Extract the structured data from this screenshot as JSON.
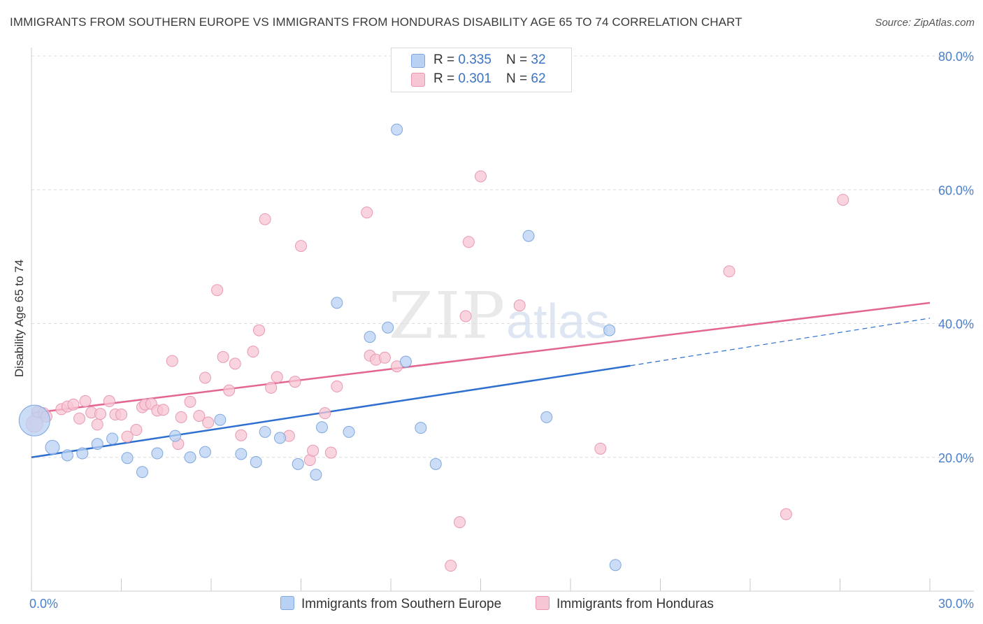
{
  "header": {
    "title": "IMMIGRANTS FROM SOUTHERN EUROPE VS IMMIGRANTS FROM HONDURAS DISABILITY AGE 65 TO 74 CORRELATION CHART",
    "source": "Source: ZipAtlas.com"
  },
  "watermark": {
    "zip": "ZIP",
    "atlas": "atlas"
  },
  "legend_top": {
    "rows": [
      {
        "r_label": "R = ",
        "r_value": "0.335",
        "n_label": "N = ",
        "n_value": "32"
      },
      {
        "r_label": "R = ",
        "r_value": "0.301",
        "n_label": "N = ",
        "n_value": "62"
      }
    ]
  },
  "legend_bottom": {
    "series_a": "Immigrants from Southern Europe",
    "series_b": "Immigrants from Honduras"
  },
  "colors": {
    "blue_fill": "#b9d2f3",
    "blue_stroke": "#7fa8de",
    "blue_line": "#2e6fd0",
    "pink_fill": "#f7c6d4",
    "pink_stroke": "#e899b2",
    "pink_line": "#e36591",
    "tick_label": "#4a7fc9",
    "grid": "#dcdcdc"
  },
  "chart_data": {
    "type": "scatter",
    "title": "IMMIGRANTS FROM SOUTHERN EUROPE VS IMMIGRANTS FROM HONDURAS DISABILITY AGE 65 TO 74 CORRELATION CHART",
    "xlabel": "",
    "ylabel": "Disability Age 65 to 74",
    "xlim": [
      0,
      30
    ],
    "ylim": [
      0,
      80
    ],
    "x_tick_labels": [
      "0.0%",
      "30.0%"
    ],
    "y_ticks": [
      20,
      40,
      60,
      80
    ],
    "y_tick_labels": [
      "20.0%",
      "40.0%",
      "60.0%",
      "80.0%"
    ],
    "grid": true,
    "legend_placement": "top-center",
    "series": [
      {
        "name": "Immigrants from Southern Europe",
        "r": 0.335,
        "n": 32,
        "trend": {
          "x0": 0,
          "y0": 20.0,
          "x1": 20.0,
          "y1": 33.7,
          "dashed_to_x": 30,
          "dashed_to_y": 40.8
        },
        "points": [
          {
            "x": 0.1,
            "y": 25.5,
            "s": 22
          },
          {
            "x": 0.7,
            "y": 21.5,
            "s": 10
          },
          {
            "x": 1.2,
            "y": 20.3,
            "s": 8
          },
          {
            "x": 1.7,
            "y": 20.6,
            "s": 8
          },
          {
            "x": 2.2,
            "y": 22.0,
            "s": 8
          },
          {
            "x": 2.7,
            "y": 22.8,
            "s": 8
          },
          {
            "x": 3.2,
            "y": 19.9,
            "s": 8
          },
          {
            "x": 3.7,
            "y": 17.8,
            "s": 8
          },
          {
            "x": 4.2,
            "y": 20.6,
            "s": 8
          },
          {
            "x": 4.8,
            "y": 23.2,
            "s": 8
          },
          {
            "x": 5.3,
            "y": 20.0,
            "s": 8
          },
          {
            "x": 5.8,
            "y": 20.8,
            "s": 8
          },
          {
            "x": 6.3,
            "y": 25.6,
            "s": 8
          },
          {
            "x": 7.0,
            "y": 20.5,
            "s": 8
          },
          {
            "x": 7.5,
            "y": 19.3,
            "s": 8
          },
          {
            "x": 7.8,
            "y": 23.8,
            "s": 8
          },
          {
            "x": 8.3,
            "y": 22.9,
            "s": 8
          },
          {
            "x": 8.9,
            "y": 19.0,
            "s": 8
          },
          {
            "x": 9.5,
            "y": 17.4,
            "s": 8
          },
          {
            "x": 9.7,
            "y": 24.5,
            "s": 8
          },
          {
            "x": 10.2,
            "y": 43.1,
            "s": 8
          },
          {
            "x": 10.6,
            "y": 23.8,
            "s": 8
          },
          {
            "x": 11.3,
            "y": 38.0,
            "s": 8
          },
          {
            "x": 11.9,
            "y": 39.4,
            "s": 8
          },
          {
            "x": 12.2,
            "y": 69.0,
            "s": 8
          },
          {
            "x": 12.5,
            "y": 34.3,
            "s": 8
          },
          {
            "x": 13.0,
            "y": 24.4,
            "s": 8
          },
          {
            "x": 13.5,
            "y": 19.0,
            "s": 8
          },
          {
            "x": 16.6,
            "y": 53.1,
            "s": 8
          },
          {
            "x": 17.2,
            "y": 26.0,
            "s": 8
          },
          {
            "x": 19.3,
            "y": 39.0,
            "s": 8
          },
          {
            "x": 19.5,
            "y": 3.9,
            "s": 8
          }
        ]
      },
      {
        "name": "Immigrants from Honduras",
        "r": 0.301,
        "n": 62,
        "trend": {
          "x0": 0,
          "y0": 26.6,
          "x1": 30,
          "y1": 43.1
        },
        "points": [
          {
            "x": 0.1,
            "y": 25.0,
            "s": 12
          },
          {
            "x": 0.2,
            "y": 26.8,
            "s": 8
          },
          {
            "x": 0.4,
            "y": 26.6,
            "s": 8
          },
          {
            "x": 0.5,
            "y": 26.1,
            "s": 8
          },
          {
            "x": 1.0,
            "y": 27.2,
            "s": 8
          },
          {
            "x": 1.2,
            "y": 27.6,
            "s": 8
          },
          {
            "x": 1.4,
            "y": 27.9,
            "s": 8
          },
          {
            "x": 1.6,
            "y": 25.8,
            "s": 8
          },
          {
            "x": 1.8,
            "y": 28.4,
            "s": 8
          },
          {
            "x": 2.0,
            "y": 26.7,
            "s": 8
          },
          {
            "x": 2.2,
            "y": 24.9,
            "s": 8
          },
          {
            "x": 2.3,
            "y": 26.5,
            "s": 8
          },
          {
            "x": 2.6,
            "y": 28.4,
            "s": 8
          },
          {
            "x": 2.8,
            "y": 26.4,
            "s": 8
          },
          {
            "x": 3.0,
            "y": 26.4,
            "s": 8
          },
          {
            "x": 3.2,
            "y": 23.1,
            "s": 8
          },
          {
            "x": 3.5,
            "y": 24.1,
            "s": 8
          },
          {
            "x": 3.7,
            "y": 27.5,
            "s": 8
          },
          {
            "x": 3.8,
            "y": 27.9,
            "s": 8
          },
          {
            "x": 4.0,
            "y": 28.0,
            "s": 8
          },
          {
            "x": 4.2,
            "y": 27.0,
            "s": 8
          },
          {
            "x": 4.4,
            "y": 27.1,
            "s": 8
          },
          {
            "x": 4.7,
            "y": 34.4,
            "s": 8
          },
          {
            "x": 4.9,
            "y": 22.0,
            "s": 8
          },
          {
            "x": 5.0,
            "y": 26.0,
            "s": 8
          },
          {
            "x": 5.3,
            "y": 28.3,
            "s": 8
          },
          {
            "x": 5.6,
            "y": 26.2,
            "s": 8
          },
          {
            "x": 5.8,
            "y": 31.9,
            "s": 8
          },
          {
            "x": 5.9,
            "y": 25.2,
            "s": 8
          },
          {
            "x": 6.2,
            "y": 45.0,
            "s": 8
          },
          {
            "x": 6.4,
            "y": 35.0,
            "s": 8
          },
          {
            "x": 6.6,
            "y": 30.0,
            "s": 8
          },
          {
            "x": 6.8,
            "y": 34.0,
            "s": 8
          },
          {
            "x": 7.0,
            "y": 23.3,
            "s": 8
          },
          {
            "x": 7.4,
            "y": 35.8,
            "s": 8
          },
          {
            "x": 7.6,
            "y": 39.0,
            "s": 8
          },
          {
            "x": 7.8,
            "y": 55.6,
            "s": 8
          },
          {
            "x": 8.0,
            "y": 30.4,
            "s": 8
          },
          {
            "x": 8.2,
            "y": 32.0,
            "s": 8
          },
          {
            "x": 8.6,
            "y": 23.2,
            "s": 8
          },
          {
            "x": 8.8,
            "y": 31.3,
            "s": 8
          },
          {
            "x": 9.0,
            "y": 51.6,
            "s": 8
          },
          {
            "x": 9.3,
            "y": 19.6,
            "s": 8
          },
          {
            "x": 9.4,
            "y": 21.0,
            "s": 8
          },
          {
            "x": 9.8,
            "y": 26.6,
            "s": 8
          },
          {
            "x": 10.0,
            "y": 20.7,
            "s": 8
          },
          {
            "x": 10.2,
            "y": 30.6,
            "s": 8
          },
          {
            "x": 11.2,
            "y": 56.6,
            "s": 8
          },
          {
            "x": 11.3,
            "y": 35.2,
            "s": 8
          },
          {
            "x": 11.5,
            "y": 34.6,
            "s": 8
          },
          {
            "x": 11.8,
            "y": 34.9,
            "s": 8
          },
          {
            "x": 12.2,
            "y": 33.6,
            "s": 8
          },
          {
            "x": 14.0,
            "y": 3.8,
            "s": 8
          },
          {
            "x": 14.3,
            "y": 10.3,
            "s": 8
          },
          {
            "x": 14.5,
            "y": 41.1,
            "s": 8
          },
          {
            "x": 14.6,
            "y": 52.2,
            "s": 8
          },
          {
            "x": 15.0,
            "y": 62.0,
            "s": 8
          },
          {
            "x": 16.3,
            "y": 42.7,
            "s": 8
          },
          {
            "x": 19.0,
            "y": 21.3,
            "s": 8
          },
          {
            "x": 23.3,
            "y": 47.8,
            "s": 8
          },
          {
            "x": 25.2,
            "y": 11.5,
            "s": 8
          },
          {
            "x": 27.1,
            "y": 58.5,
            "s": 8
          }
        ]
      }
    ]
  }
}
